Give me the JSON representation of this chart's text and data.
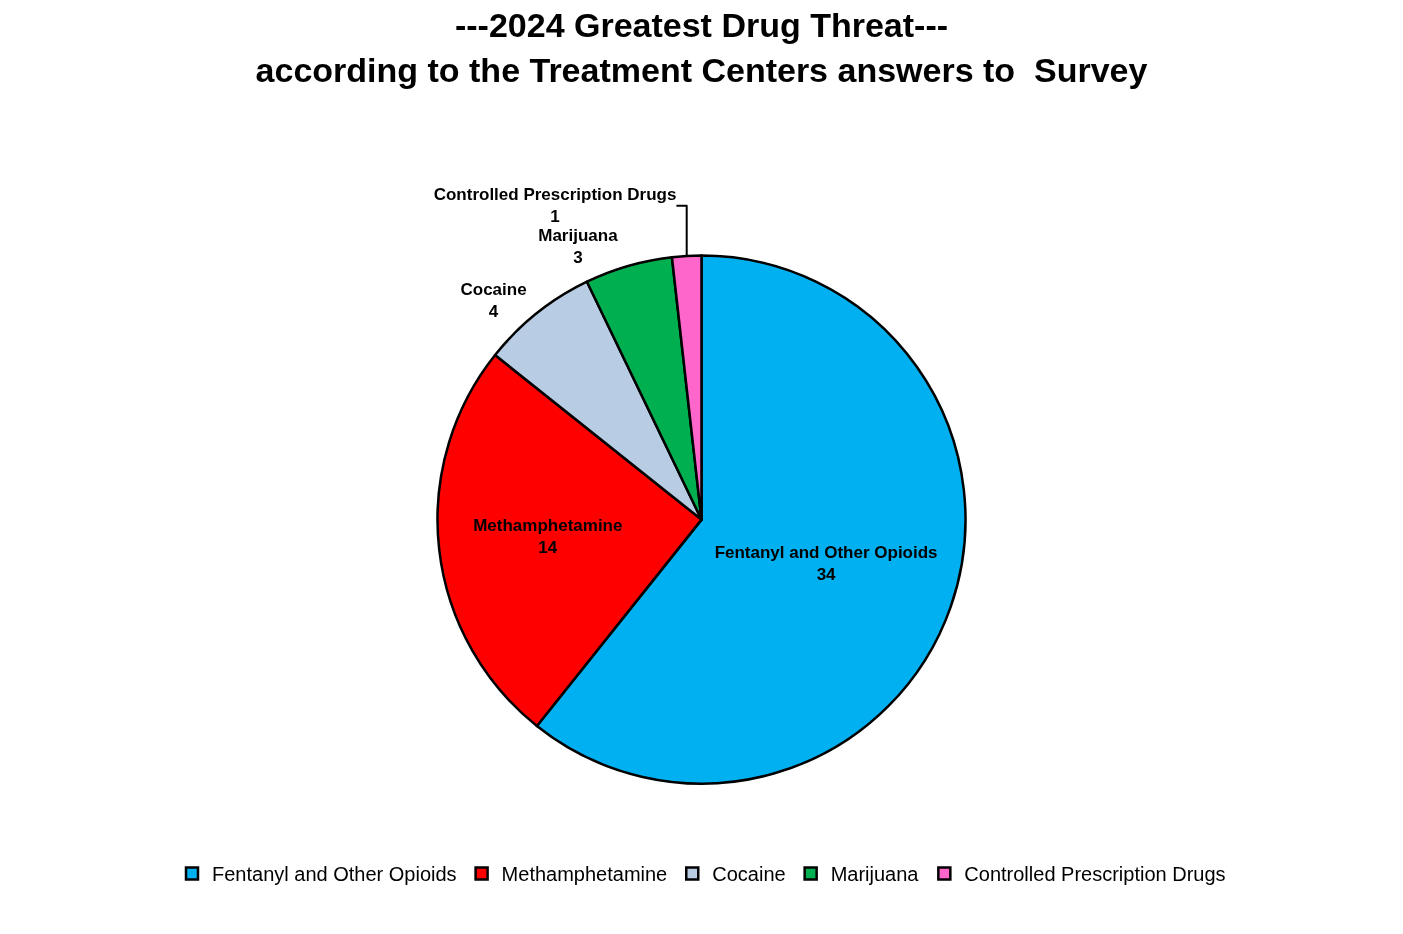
{
  "chart_data": {
    "type": "pie",
    "title": "---2024 Greatest Drug Threat---\naccording to the Treatment Centers answers to  Survey",
    "categories": [
      "Fentanyl and Other Opioids",
      "Methamphetamine",
      "Cocaine",
      "Marijuana",
      "Controlled Prescription Drugs"
    ],
    "values": [
      34,
      14,
      4,
      3,
      1
    ],
    "colors": [
      "#00b0f0",
      "#ff0000",
      "#b8cce4",
      "#00b050",
      "#ff66cc"
    ],
    "data_labels": true,
    "legend": "bottom"
  }
}
